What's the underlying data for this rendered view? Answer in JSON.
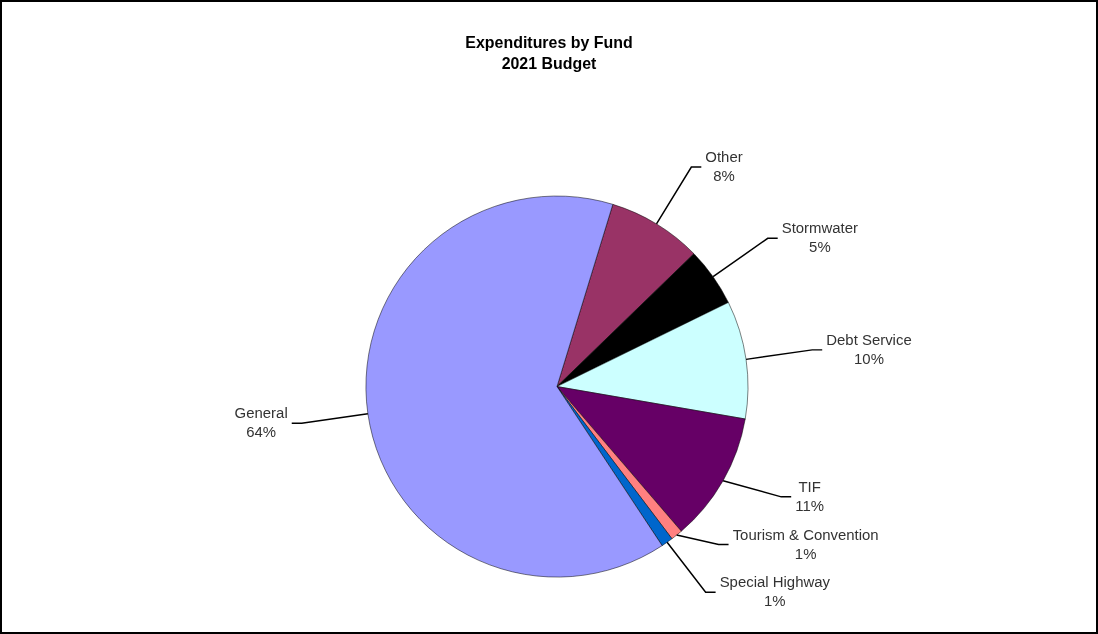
{
  "chart_data": {
    "type": "pie",
    "title": "Expenditures by Fund",
    "subtitle": "2021 Budget",
    "categories": [
      "Other",
      "Stormwater",
      "Debt Service",
      "TIF",
      "Tourism & Convention",
      "Special Highway",
      "General"
    ],
    "values": [
      8,
      5,
      10,
      11,
      1,
      1,
      64
    ],
    "value_labels": [
      "8%",
      "5%",
      "10%",
      "11%",
      "1%",
      "1%",
      "64%"
    ],
    "colors": [
      "#993366",
      "#000000",
      "#ccffff",
      "#660066",
      "#ff8080",
      "#0066cc",
      "#9999ff"
    ],
    "legend": false
  }
}
